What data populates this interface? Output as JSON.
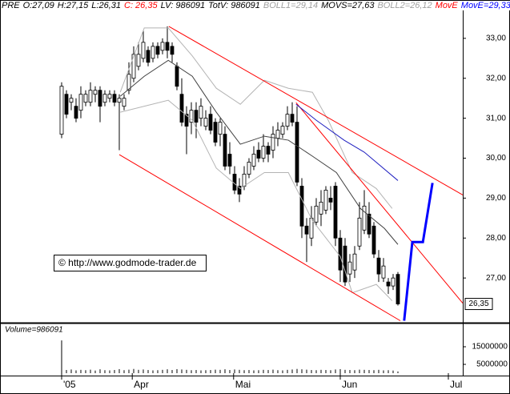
{
  "chart_data": {
    "type": "candlestick",
    "header": [
      {
        "text": "PRE",
        "color": "#000000"
      },
      {
        "text": "O:27,09",
        "color": "#000000"
      },
      {
        "text": "H:27,15",
        "color": "#000000"
      },
      {
        "text": "L:26,31",
        "color": "#000000"
      },
      {
        "text": "C: 26,35",
        "color": "#ff0000"
      },
      {
        "text": "LV: 986091",
        "color": "#000000"
      },
      {
        "text": "TotV: 986091",
        "color": "#000000"
      },
      {
        "text": "BOLL1=29,14",
        "color": "#a0a0a0"
      },
      {
        "text": "MOVS=27,63",
        "color": "#000000"
      },
      {
        "text": "BOLL2=26,12",
        "color": "#a0a0a0"
      },
      {
        "text": "MovE",
        "color": "#ff0000"
      },
      {
        "text": "MovE=29,33",
        "color": "#0000ff"
      }
    ],
    "copyright": "© http://www.godmode-trader.de",
    "xlim": [
      -12.83,
      83.5
    ],
    "xticks": [
      {
        "value": 0,
        "label": "'05"
      },
      {
        "value": 14.7,
        "label": "Apr"
      },
      {
        "value": 35.8,
        "label": "Mai"
      },
      {
        "value": 58,
        "label": "Jun"
      },
      {
        "value": 80.5,
        "label": "Jul"
      }
    ],
    "ylim": [
      25.88,
      33.96
    ],
    "yticks": [
      {
        "value": 27,
        "label": "27,00"
      },
      {
        "value": 28,
        "label": "28,00"
      },
      {
        "value": 29,
        "label": "29,00"
      },
      {
        "value": 30,
        "label": "30,00"
      },
      {
        "value": 31,
        "label": "31,00"
      },
      {
        "value": 32,
        "label": "32,00"
      },
      {
        "value": 33,
        "label": "33,00"
      }
    ],
    "last_price": {
      "value": 26.35,
      "label": "26,35"
    },
    "ohlc": {
      "open": [
        30.6,
        31.6,
        31.4,
        31.3,
        31.2,
        31.4,
        31.4,
        31.6,
        31.7,
        31.4,
        31.5,
        31.6,
        31.4,
        31.3,
        31.7,
        32.0,
        32.3,
        32.5,
        32.7,
        32.5,
        32.8,
        32.7,
        32.9,
        32.8,
        32.3,
        31.6,
        31.1,
        30.9,
        31.2,
        31.0,
        30.8,
        31.1,
        30.9,
        30.6,
        30.6,
        30.1,
        29.6,
        29.3,
        29.3,
        29.6,
        29.8,
        30.2,
        30.0,
        30.3,
        30.2,
        30.5,
        30.6,
        30.8,
        31.1,
        30.9,
        29.3,
        28.3,
        28.0,
        28.4,
        28.6,
        28.7,
        29.0,
        29.3,
        28.0,
        27.8,
        27.1,
        27.2,
        27.8,
        28.2,
        28.6,
        28.3,
        27.5,
        27.0,
        26.9,
        26.8,
        27.09
      ],
      "high": [
        31.9,
        31.7,
        31.6,
        31.5,
        31.8,
        31.7,
        31.9,
        31.8,
        31.8,
        31.7,
        31.7,
        31.7,
        31.6,
        31.6,
        32.4,
        32.8,
        32.9,
        33.2,
        32.8,
        32.9,
        32.9,
        33.0,
        33.3,
        32.9,
        32.4,
        32.0,
        31.3,
        31.4,
        31.4,
        31.5,
        31.2,
        31.3,
        31.0,
        31.0,
        30.8,
        30.4,
        29.8,
        29.5,
        29.8,
        30.0,
        30.3,
        30.4,
        30.6,
        30.4,
        30.8,
        30.9,
        30.9,
        31.3,
        31.4,
        31.3,
        29.5,
        28.5,
        28.8,
        29.0,
        29.2,
        29.3,
        29.3,
        29.4,
        28.2,
        28.0,
        27.6,
        27.8,
        28.9,
        29.2,
        28.9,
        28.4,
        27.7,
        27.5,
        27.0,
        27.1,
        27.15
      ],
      "low": [
        30.5,
        31.0,
        31.2,
        30.9,
        31.0,
        31.3,
        31.3,
        31.4,
        30.9,
        31.3,
        31.4,
        31.3,
        30.2,
        31.2,
        31.6,
        31.9,
        32.2,
        32.4,
        32.3,
        32.4,
        32.5,
        32.6,
        32.5,
        32.4,
        31.7,
        30.8,
        30.1,
        30.6,
        30.5,
        30.8,
        30.7,
        30.6,
        30.3,
        30.3,
        29.7,
        29.6,
        29.1,
        28.9,
        29.2,
        29.5,
        29.7,
        29.9,
        29.9,
        29.9,
        30.0,
        30.3,
        30.5,
        30.7,
        30.8,
        29.3,
        28.0,
        27.4,
        27.8,
        28.3,
        28.3,
        28.6,
        28.7,
        27.8,
        26.9,
        26.8,
        26.9,
        27.0,
        27.7,
        28.1,
        28.0,
        27.5,
        26.9,
        26.9,
        26.6,
        26.7,
        26.31
      ],
      "close": [
        31.8,
        31.1,
        31.5,
        31.0,
        31.6,
        31.6,
        31.7,
        31.7,
        31.3,
        31.6,
        31.6,
        31.4,
        31.5,
        31.5,
        32.1,
        32.6,
        32.6,
        32.9,
        32.4,
        32.8,
        32.6,
        32.9,
        32.7,
        32.6,
        31.8,
        30.9,
        30.8,
        31.2,
        30.9,
        31.3,
        31.0,
        30.7,
        30.4,
        30.9,
        29.8,
        29.8,
        29.2,
        29.1,
        29.6,
        29.9,
        30.1,
        30.0,
        30.3,
        30.1,
        30.6,
        30.7,
        30.8,
        31.1,
        30.9,
        29.4,
        28.3,
        28.1,
        28.5,
        28.8,
        28.9,
        29.2,
        28.9,
        28.0,
        27.2,
        26.9,
        27.4,
        27.6,
        28.5,
        28.8,
        28.1,
        27.6,
        27.1,
        27.3,
        26.8,
        27.0,
        26.35
      ]
    },
    "lines": [
      {
        "color": "#b4b4b4",
        "bold": false,
        "x": [
          12.2,
          17.2,
          22.2,
          27.2,
          32.2,
          37.2,
          42.2,
          47.2,
          52.2,
          55.5,
          60.5,
          65.5,
          68.8
        ],
        "values": [
          31.65,
          33.26,
          33.26,
          32.56,
          31.75,
          31.35,
          31.95,
          31.75,
          31.65,
          30.95,
          29.64,
          29.24,
          28.74
        ]
      },
      {
        "color": "#b4b4b4",
        "bold": false,
        "x": [
          12.2,
          22.2,
          27.2,
          32.2,
          37.2,
          42.2,
          47.2,
          52.2,
          58.0,
          60.5,
          65.5,
          68.8
        ],
        "values": [
          31.15,
          31.45,
          30.95,
          29.75,
          29.24,
          29.64,
          29.64,
          28.44,
          27.54,
          26.63,
          26.84,
          26.43
        ]
      },
      {
        "color": "#404040",
        "bold": false,
        "x": [
          12.2,
          17.2,
          22.2,
          27.2,
          32.2,
          37.2,
          42.2,
          47.2,
          52.2,
          57.2,
          62.2,
          67.2,
          70
        ],
        "values": [
          31.55,
          32.05,
          32.45,
          32.05,
          31.15,
          30.35,
          30.55,
          30.45,
          30.05,
          29.64,
          28.74,
          28.24,
          27.84
        ]
      },
      {
        "color": "#ff0000",
        "bold": false,
        "x": [
          22.3,
          83.5
        ],
        "values": [
          33.3,
          29.08
        ]
      },
      {
        "color": "#ff0000",
        "bold": false,
        "x": [
          48.8,
          83.5
        ],
        "values": [
          31.39,
          26.37
        ]
      },
      {
        "color": "#ff0000",
        "bold": false,
        "x": [
          12,
          70.5
        ],
        "values": [
          30.09,
          25.93
        ]
      },
      {
        "color": "#2020c0",
        "bold": false,
        "x": [
          48.8,
          53,
          58.8,
          63,
          70
        ],
        "values": [
          31.35,
          30.95,
          30.45,
          30.15,
          29.44
        ]
      },
      {
        "color": "#0000ff",
        "bold": true,
        "x": [
          71.3,
          73,
          75.2,
          77.2
        ],
        "values": [
          25.93,
          27.9,
          27.9,
          29.38
        ]
      }
    ],
    "volume_label": "Volume=986091",
    "volume_ylim": [
      0,
      28000000
    ],
    "volume_yticks": [
      5000000,
      15000000
    ],
    "volume": [
      18600000,
      1800000,
      2100000,
      1600000,
      1900000,
      1700000,
      2000000,
      1500000,
      2200000,
      1700000,
      1600000,
      1800000,
      2300000,
      1700000,
      2000000,
      2400000,
      1900000,
      2100000,
      1800000,
      1600000,
      1700000,
      1900000,
      2200000,
      1800000,
      2300000,
      2100000,
      1900000,
      1700000,
      1800000,
      1600000,
      1700000,
      1800000,
      2000000,
      1900000,
      2200000,
      1800000,
      2100000,
      1900000,
      1700000,
      1800000,
      1600000,
      1700000,
      1900000,
      1800000,
      2000000,
      1700000,
      1600000,
      1900000,
      2100000,
      2400000,
      2200000,
      2000000,
      1800000,
      1700000,
      1900000,
      1800000,
      1700000,
      2100000,
      2300000,
      1900000,
      1800000,
      1700000,
      2000000,
      1900000,
      1800000,
      1700000,
      1900000,
      1600000,
      1700000,
      1500000,
      986091
    ]
  }
}
